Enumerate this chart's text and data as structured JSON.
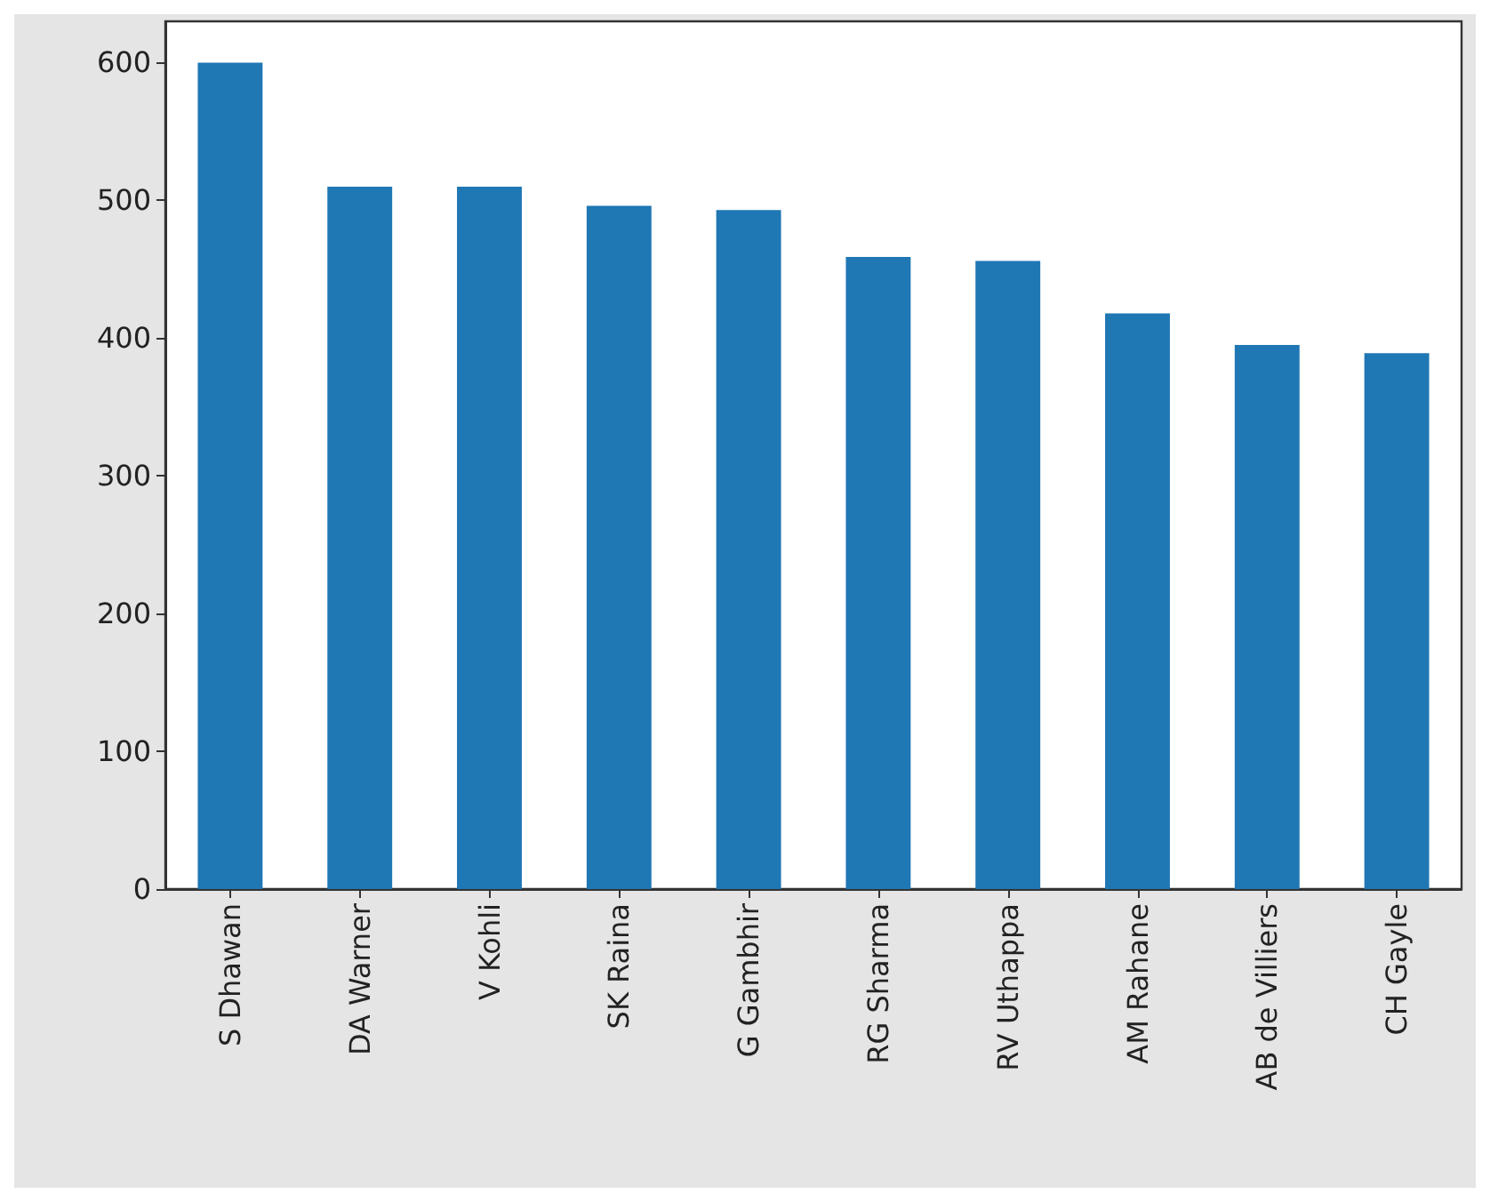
{
  "chart_data": {
    "type": "bar",
    "categories": [
      "S Dhawan",
      "DA Warner",
      "V Kohli",
      "SK Raina",
      "G Gambhir",
      "RG Sharma",
      "RV Uthappa",
      "AM Rahane",
      "AB de Villiers",
      "CH Gayle"
    ],
    "values": [
      600,
      510,
      510,
      496,
      493,
      459,
      456,
      418,
      395,
      389
    ],
    "color": "#1f77b4",
    "ylim": [
      0,
      630
    ],
    "yticks": [
      0,
      100,
      200,
      300,
      400,
      500,
      600
    ],
    "grid": false
  }
}
